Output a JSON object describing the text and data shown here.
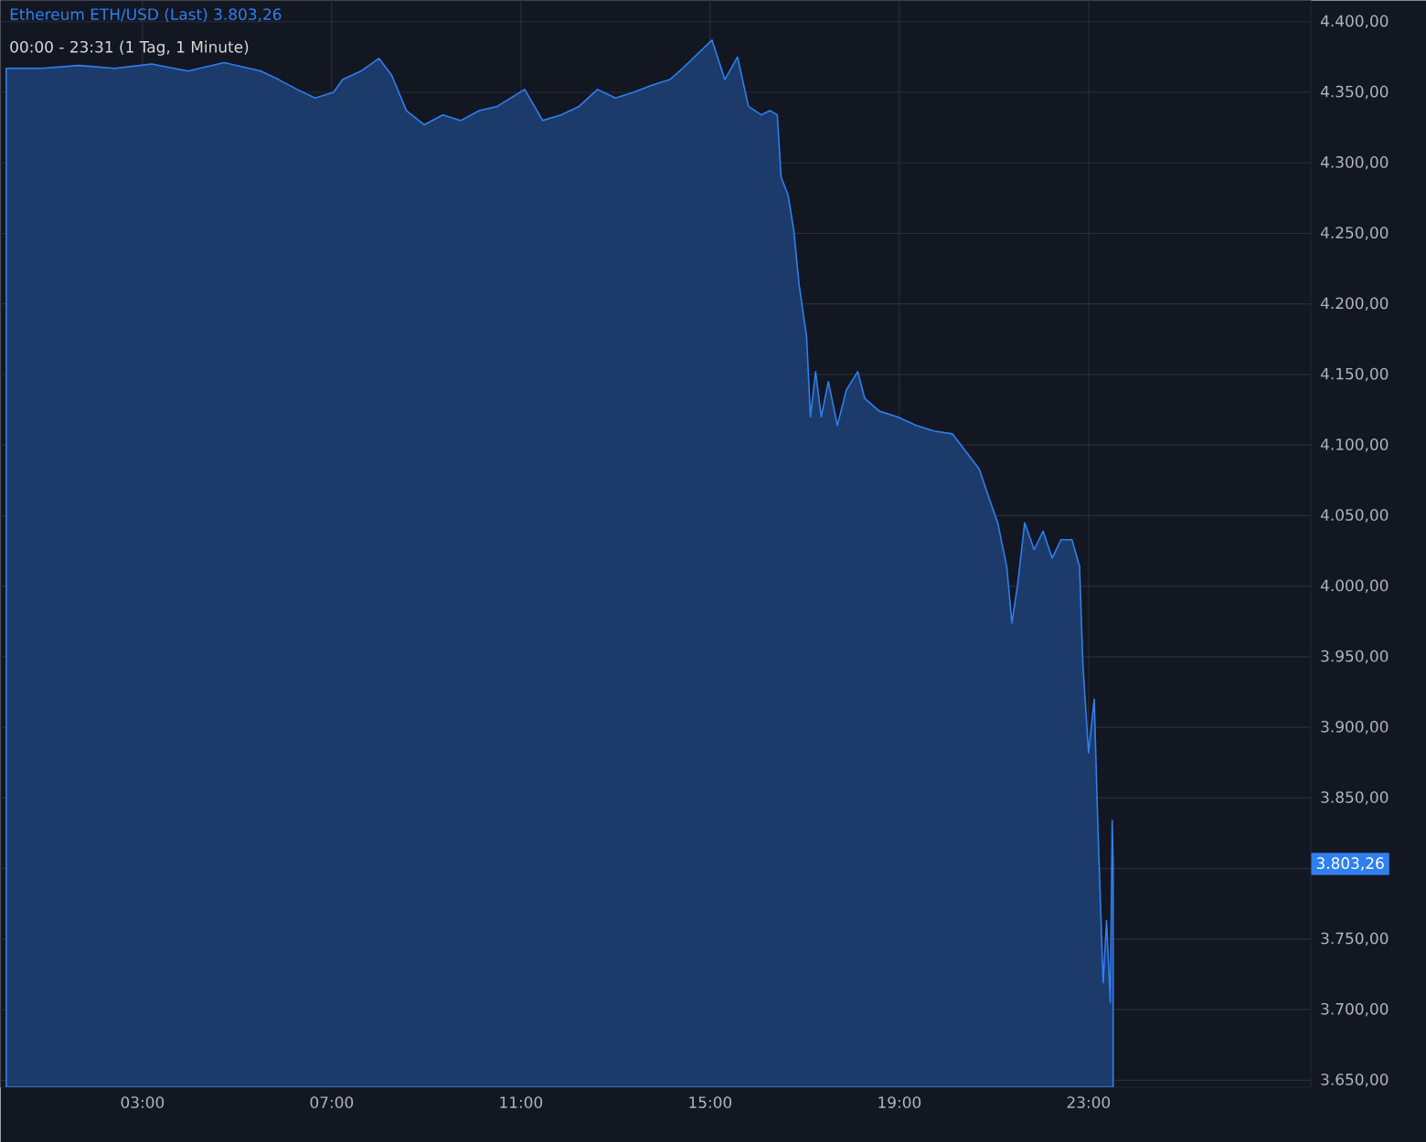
{
  "chart_data": {
    "type": "area",
    "title": "Ethereum ETH/USD (Last) 3.803,26",
    "subtitle": "00:00 - 23:31 (1 Tag, 1 Minute)",
    "x": [
      0.12,
      0.88,
      1.65,
      2.42,
      3.19,
      3.96,
      4.73,
      5.5,
      5.88,
      6.27,
      6.65,
      7.04,
      7.23,
      7.62,
      8.0,
      8.27,
      8.58,
      8.96,
      9.35,
      9.73,
      10.12,
      10.5,
      11.08,
      11.46,
      11.85,
      12.23,
      12.62,
      13.0,
      13.38,
      13.77,
      14.15,
      14.42,
      14.73,
      15.04,
      15.31,
      15.58,
      15.81,
      16.08,
      16.27,
      16.42,
      16.5,
      16.65,
      16.77,
      16.88,
      17.04,
      17.12,
      17.23,
      17.35,
      17.5,
      17.69,
      17.88,
      18.12,
      18.27,
      18.58,
      18.96,
      19.35,
      19.73,
      20.12,
      20.42,
      20.69,
      20.88,
      21.08,
      21.27,
      21.38,
      21.5,
      21.65,
      21.85,
      22.04,
      22.23,
      22.42,
      22.65,
      22.81,
      22.88,
      23.0,
      23.12,
      23.19,
      23.27,
      23.31,
      23.38,
      23.46,
      23.5,
      23.52
    ],
    "values": [
      4367,
      4367,
      4369,
      4367,
      4370,
      4365,
      4371,
      4365,
      4359,
      4352,
      4346,
      4350,
      4359,
      4365,
      4374,
      4362,
      4337,
      4327,
      4334,
      4330,
      4337,
      4340,
      4352,
      4330,
      4334,
      4340,
      4352,
      4346,
      4350,
      4355,
      4359,
      4367,
      4377,
      4387,
      4359,
      4375,
      4340,
      4334,
      4337,
      4334,
      4290,
      4277,
      4252,
      4214,
      4177,
      4120,
      4152,
      4120,
      4145,
      4114,
      4139,
      4152,
      4133,
      4124,
      4120,
      4114,
      4110,
      4108,
      4095,
      4083,
      4064,
      4045,
      4014,
      3974,
      4001,
      4045,
      4026,
      4039,
      4020,
      4033,
      4033,
      4014,
      3945,
      3882,
      3920,
      3838,
      3757,
      3719,
      3763,
      3705,
      3834,
      3803.26
    ],
    "color": "#2f7ff0",
    "xlim": [
      0,
      27.7
    ],
    "ylim": [
      3645,
      4415
    ],
    "xticks": [
      {
        "value": 3,
        "label": "03:00"
      },
      {
        "value": 7,
        "label": "07:00"
      },
      {
        "value": 11,
        "label": "11:00"
      },
      {
        "value": 15,
        "label": "15:00"
      },
      {
        "value": 19,
        "label": "19:00"
      },
      {
        "value": 23,
        "label": "23:00"
      }
    ],
    "yticks": [
      {
        "value": 3650,
        "label": "3.650,00"
      },
      {
        "value": 3700,
        "label": "3.700,00"
      },
      {
        "value": 3750,
        "label": "3.750,00"
      },
      {
        "value": 3800,
        "label": null
      },
      {
        "value": 3850,
        "label": "3.850,00"
      },
      {
        "value": 3900,
        "label": "3.900,00"
      },
      {
        "value": 3950,
        "label": "3.950,00"
      },
      {
        "value": 4000,
        "label": "4.000,00"
      },
      {
        "value": 4050,
        "label": "4.050,00"
      },
      {
        "value": 4100,
        "label": "4.100,00"
      },
      {
        "value": 4150,
        "label": "4.150,00"
      },
      {
        "value": 4200,
        "label": "4.200,00"
      },
      {
        "value": 4250,
        "label": "4.250,00"
      },
      {
        "value": 4300,
        "label": "4.300,00"
      },
      {
        "value": 4350,
        "label": "4.350,00"
      },
      {
        "value": 4400,
        "label": "4.400,00"
      }
    ],
    "grid": true,
    "annotations": [
      "3.803,26"
    ]
  }
}
